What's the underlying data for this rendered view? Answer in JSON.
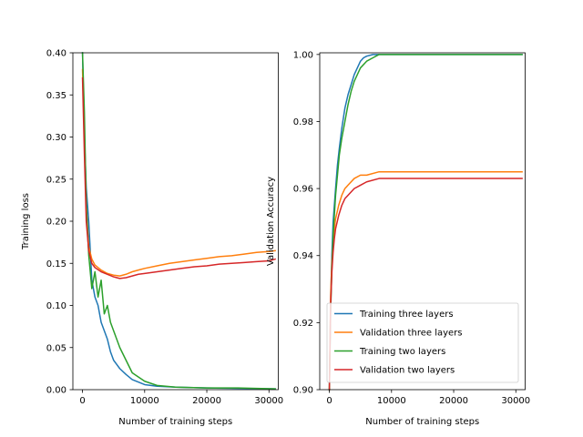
{
  "chart_data": [
    {
      "type": "line",
      "title": "",
      "xlabel": "Number of training steps",
      "ylabel": "Training loss",
      "xlim": [
        -1550,
        31500
      ],
      "ylim": [
        0.0,
        0.4
      ],
      "xticks": [
        0,
        10000,
        20000,
        30000
      ],
      "yticks": [
        0.0,
        0.05,
        0.1,
        0.15,
        0.2,
        0.25,
        0.3,
        0.35,
        0.4
      ],
      "xtick_labels": [
        "0",
        "10000",
        "20000",
        "30000"
      ],
      "ytick_labels": [
        "0.00",
        "0.05",
        "0.10",
        "0.15",
        "0.20",
        "0.25",
        "0.30",
        "0.35",
        "0.40"
      ],
      "grid": false,
      "legend": false,
      "series": [
        {
          "color": "#1f77b4",
          "x": [
            0,
            300,
            600,
            1000,
            1500,
            2000,
            2500,
            3000,
            3500,
            4000,
            4500,
            5000,
            6000,
            7000,
            8000,
            9000,
            10000,
            12000,
            15000,
            20000,
            25000,
            31000
          ],
          "y": [
            0.4,
            0.3,
            0.24,
            0.2,
            0.13,
            0.11,
            0.1,
            0.08,
            0.07,
            0.06,
            0.045,
            0.035,
            0.025,
            0.018,
            0.012,
            0.009,
            0.006,
            0.004,
            0.003,
            0.002,
            0.0015,
            0.001
          ]
        },
        {
          "color": "#ff7f0e",
          "x": [
            0,
            300,
            600,
            1000,
            1500,
            2000,
            3000,
            4000,
            5000,
            6000,
            7000,
            8000,
            9000,
            10000,
            12000,
            14000,
            16000,
            18000,
            20000,
            22000,
            24000,
            26000,
            28000,
            30000,
            31000
          ],
          "y": [
            0.38,
            0.3,
            0.22,
            0.17,
            0.155,
            0.148,
            0.142,
            0.138,
            0.136,
            0.135,
            0.137,
            0.14,
            0.142,
            0.144,
            0.147,
            0.15,
            0.152,
            0.154,
            0.156,
            0.158,
            0.159,
            0.161,
            0.163,
            0.164,
            0.165
          ]
        },
        {
          "color": "#2ca02c",
          "x": [
            0,
            300,
            600,
            1000,
            1500,
            2000,
            2500,
            3000,
            3500,
            4000,
            4500,
            5000,
            6000,
            7000,
            8000,
            9000,
            10000,
            12000,
            15000,
            20000,
            25000,
            31000
          ],
          "y": [
            0.4,
            0.33,
            0.22,
            0.16,
            0.12,
            0.14,
            0.11,
            0.13,
            0.09,
            0.1,
            0.08,
            0.07,
            0.05,
            0.035,
            0.02,
            0.015,
            0.01,
            0.005,
            0.003,
            0.002,
            0.002,
            0.001
          ]
        },
        {
          "color": "#d62728",
          "x": [
            0,
            300,
            600,
            1000,
            1500,
            2000,
            3000,
            4000,
            5000,
            6000,
            7000,
            8000,
            9000,
            10000,
            12000,
            14000,
            16000,
            18000,
            20000,
            22000,
            24000,
            26000,
            28000,
            30000,
            31000
          ],
          "y": [
            0.37,
            0.28,
            0.2,
            0.165,
            0.15,
            0.145,
            0.14,
            0.137,
            0.134,
            0.132,
            0.133,
            0.135,
            0.137,
            0.138,
            0.14,
            0.142,
            0.144,
            0.146,
            0.147,
            0.149,
            0.15,
            0.151,
            0.152,
            0.153,
            0.155
          ]
        }
      ]
    },
    {
      "type": "line",
      "title": "",
      "xlabel": "Number of training steps",
      "ylabel": "Validation Accuracy",
      "xlim": [
        -1550,
        31500
      ],
      "ylim": [
        0.9,
        1.0005
      ],
      "xticks": [
        0,
        10000,
        20000,
        30000
      ],
      "yticks": [
        0.9,
        0.92,
        0.94,
        0.96,
        0.98,
        1.0
      ],
      "xtick_labels": [
        "0",
        "10000",
        "20000",
        "30000"
      ],
      "ytick_labels": [
        "0.90",
        "0.92",
        "0.94",
        "0.96",
        "0.98",
        "1.00"
      ],
      "grid": false,
      "legend": "lower right",
      "series": [
        {
          "name": "Training three layers",
          "color": "#1f77b4",
          "x": [
            0,
            200,
            400,
            600,
            800,
            1000,
            1300,
            1600,
            2000,
            2500,
            3000,
            3500,
            4000,
            4500,
            5000,
            5500,
            6000,
            7000,
            8000,
            10000,
            15000,
            20000,
            25000,
            31000
          ],
          "y": [
            0.9,
            0.925,
            0.94,
            0.95,
            0.955,
            0.96,
            0.967,
            0.972,
            0.978,
            0.984,
            0.988,
            0.991,
            0.994,
            0.996,
            0.998,
            0.999,
            0.9995,
            1.0,
            1.0,
            1.0,
            1.0,
            1.0,
            1.0,
            1.0
          ]
        },
        {
          "name": "Validation three layers",
          "color": "#ff7f0e",
          "x": [
            0,
            200,
            400,
            600,
            800,
            1000,
            1500,
            2000,
            2500,
            3000,
            4000,
            5000,
            6000,
            8000,
            10000,
            15000,
            20000,
            25000,
            31000
          ],
          "y": [
            0.9,
            0.928,
            0.938,
            0.944,
            0.948,
            0.951,
            0.955,
            0.958,
            0.96,
            0.961,
            0.963,
            0.964,
            0.964,
            0.965,
            0.965,
            0.965,
            0.965,
            0.965,
            0.965
          ]
        },
        {
          "name": "Training two layers",
          "color": "#2ca02c",
          "x": [
            0,
            200,
            400,
            600,
            800,
            1000,
            1300,
            1600,
            2000,
            2500,
            3000,
            3500,
            4000,
            4500,
            5000,
            6000,
            7000,
            8000,
            10000,
            15000,
            20000,
            25000,
            31000
          ],
          "y": [
            0.9,
            0.923,
            0.936,
            0.946,
            0.952,
            0.958,
            0.964,
            0.97,
            0.975,
            0.98,
            0.985,
            0.989,
            0.992,
            0.994,
            0.996,
            0.998,
            0.999,
            1.0,
            1.0,
            1.0,
            1.0,
            1.0,
            1.0
          ]
        },
        {
          "name": "Validation two layers",
          "color": "#d62728",
          "x": [
            0,
            200,
            400,
            600,
            800,
            1000,
            1500,
            2000,
            2500,
            3000,
            4000,
            5000,
            6000,
            8000,
            10000,
            15000,
            20000,
            25000,
            31000
          ],
          "y": [
            0.9,
            0.925,
            0.935,
            0.941,
            0.945,
            0.948,
            0.952,
            0.955,
            0.957,
            0.958,
            0.96,
            0.961,
            0.962,
            0.963,
            0.963,
            0.963,
            0.963,
            0.963,
            0.963
          ]
        }
      ]
    }
  ]
}
